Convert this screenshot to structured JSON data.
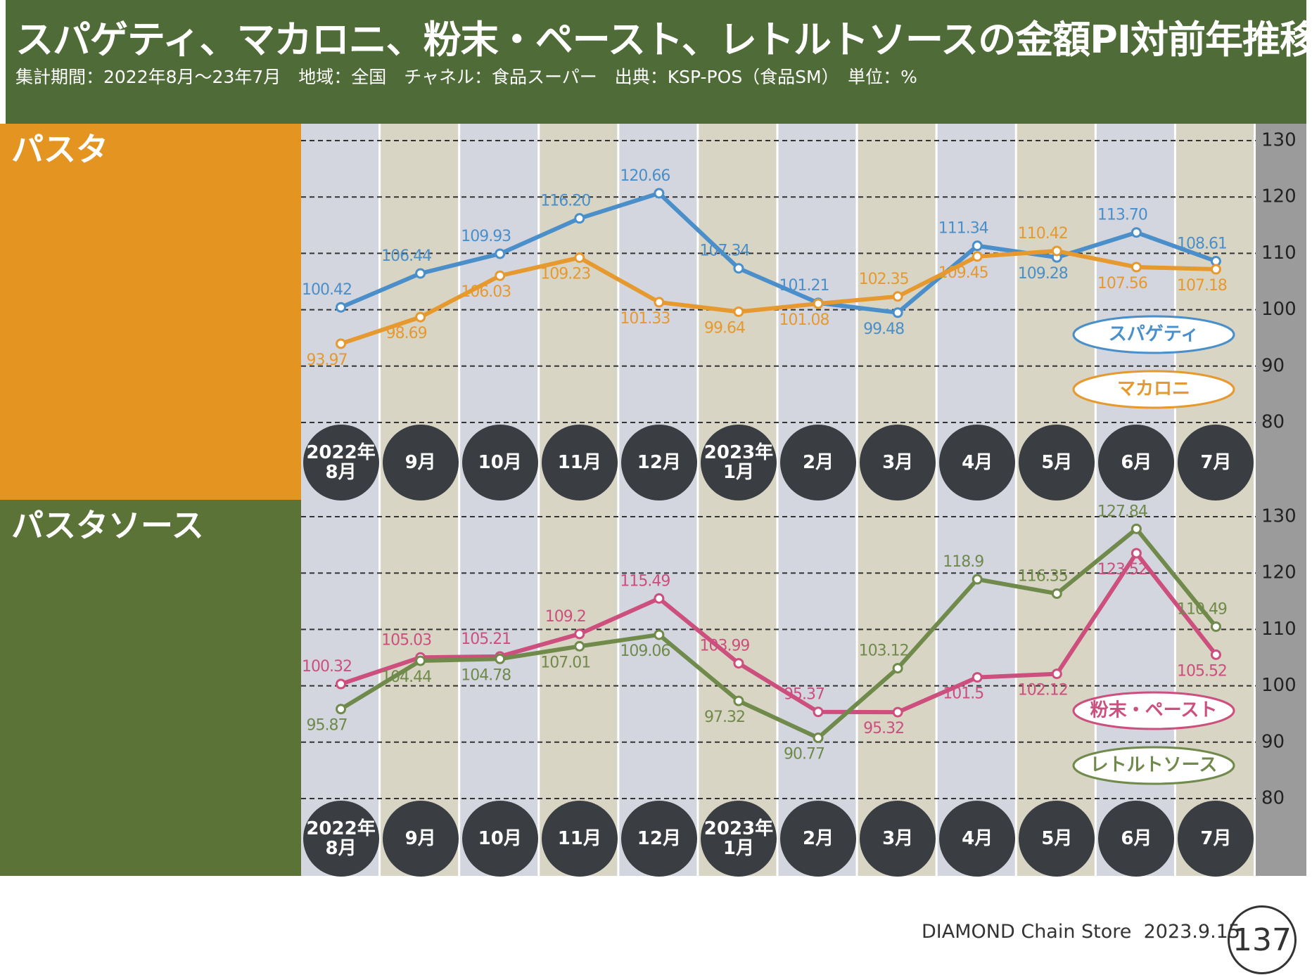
{
  "header": {
    "title": "スパゲティ、マカロニ、粉末・ペースト、レトルトソースの金額PI対前年推移",
    "subtitle": "集計期間：2022年8月～23年7月　地域：全国　チャネル：食品スーパー　出典：KSP-POS（食品SM）　単位：%"
  },
  "chart_data": [
    {
      "type": "line",
      "title": "パスタ",
      "categories": [
        "2022年\n8月",
        "9月",
        "10月",
        "11月",
        "12月",
        "2023年\n1月",
        "2月",
        "3月",
        "4月",
        "5月",
        "6月",
        "7月"
      ],
      "series": [
        {
          "name": "スパゲティ",
          "color": "#4a8fc9",
          "values": [
            100.42,
            106.44,
            109.93,
            116.2,
            120.66,
            107.34,
            101.21,
            99.48,
            111.34,
            109.28,
            113.7,
            108.61
          ],
          "value_labels": [
            "100.42",
            "106.44",
            "109.93",
            "116.20",
            "120.66",
            "107.34",
            "101.21",
            "99.48",
            "111.34",
            "109.28",
            "113.70",
            "108.61"
          ]
        },
        {
          "name": "マカロニ",
          "color": "#e6992e",
          "values": [
            93.97,
            98.69,
            106.03,
            109.23,
            101.33,
            99.64,
            101.08,
            102.35,
            109.45,
            110.42,
            107.56,
            107.18
          ]
        }
      ],
      "ylim": [
        80,
        130
      ],
      "yticks": [
        80,
        90,
        100,
        110,
        120,
        130
      ],
      "grid": true
    },
    {
      "type": "line",
      "title": "パスタソース",
      "categories": [
        "2022年\n8月",
        "9月",
        "10月",
        "11月",
        "12月",
        "2023年\n1月",
        "2月",
        "3月",
        "4月",
        "5月",
        "6月",
        "7月"
      ],
      "series": [
        {
          "name": "粉末・ペースト",
          "color": "#cc4f7e",
          "values": [
            100.32,
            105.03,
            105.21,
            109.2,
            115.49,
            103.99,
            95.37,
            95.32,
            101.5,
            102.12,
            123.52,
            105.52
          ]
        },
        {
          "name": "レトルトソース",
          "color": "#6f8a4a",
          "values": [
            95.87,
            104.44,
            104.78,
            107.01,
            109.06,
            97.32,
            90.77,
            103.12,
            118.9,
            116.35,
            127.84,
            110.49
          ]
        }
      ],
      "ylim": [
        80,
        130
      ],
      "yticks": [
        80,
        90,
        100,
        110,
        120,
        130
      ],
      "grid": true
    }
  ],
  "footer": {
    "publication": "DIAMOND Chain Store",
    "date": "2023.9.15",
    "page": "137"
  }
}
